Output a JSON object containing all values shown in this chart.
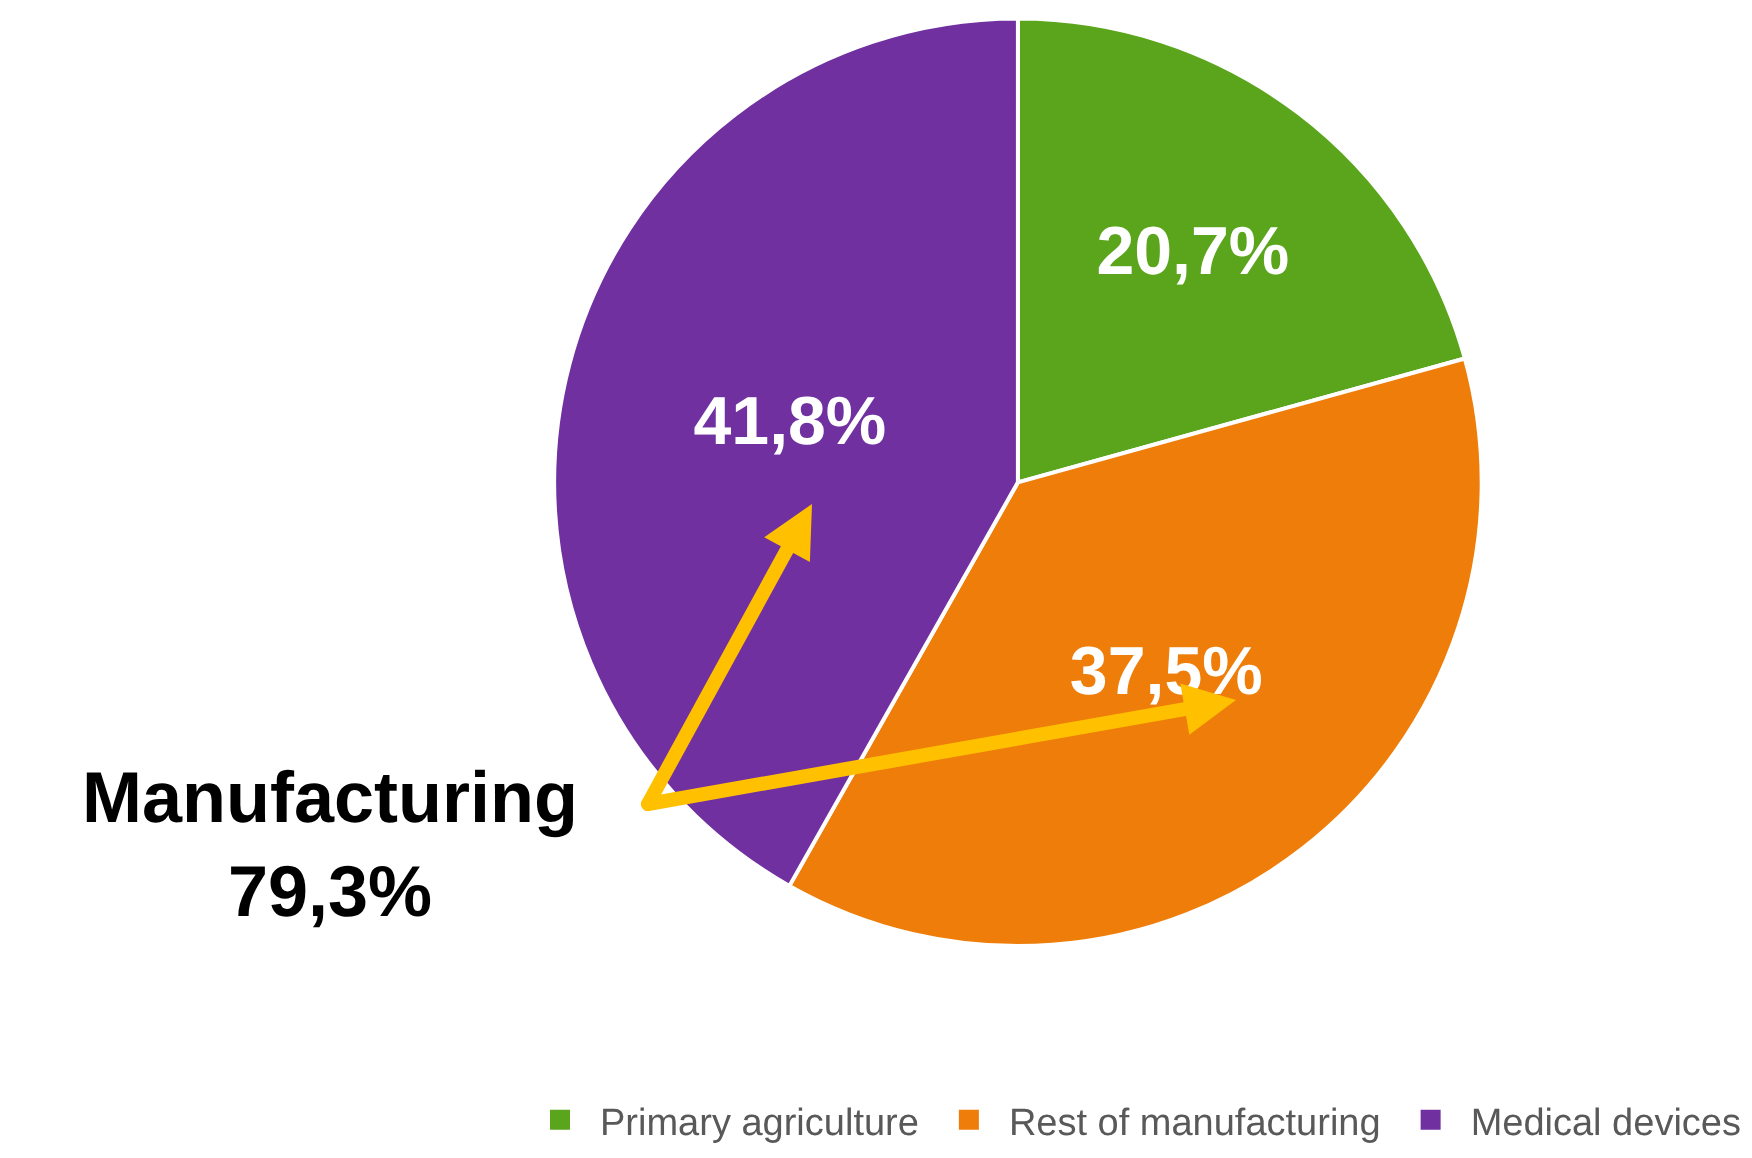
{
  "chart_data": {
    "type": "pie",
    "categories": [
      "Primary agriculture",
      "Rest of manufacturing",
      "Medical devices"
    ],
    "values": [
      20.7,
      37.5,
      41.8
    ],
    "value_labels": [
      "20,7%",
      "37,5%",
      "41,8%"
    ],
    "colors": [
      "#5aa51b",
      "#ee7d0a",
      "#7030a0"
    ],
    "annotations": [
      "Manufacturing\n79,3%"
    ],
    "legend": "bottom right"
  }
}
